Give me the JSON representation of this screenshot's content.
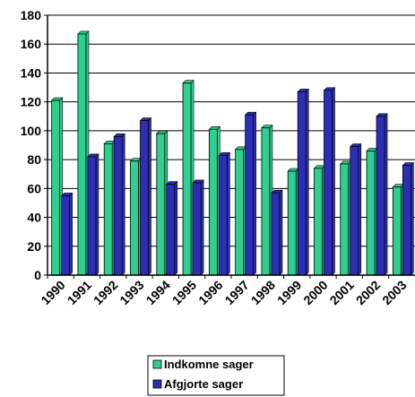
{
  "chart_data": {
    "type": "bar",
    "categories": [
      "1990",
      "1991",
      "1992",
      "1993",
      "1994",
      "1995",
      "1996",
      "1997",
      "1998",
      "1999",
      "2000",
      "2001",
      "2002",
      "2003"
    ],
    "series": [
      {
        "name": "Indkomne sager",
        "color": "#2ecf8f",
        "values": [
          121,
          167,
          91,
          79,
          98,
          133,
          101,
          87,
          102,
          72,
          74,
          77,
          86,
          61
        ]
      },
      {
        "name": "Afgjorte sager",
        "color": "#2e2eb5",
        "values": [
          55,
          82,
          96,
          107,
          63,
          64,
          83,
          111,
          57,
          127,
          128,
          89,
          110,
          76
        ]
      }
    ],
    "yticks": [
      "0",
      "20",
      "40",
      "60",
      "80",
      "100",
      "120",
      "140",
      "160",
      "180"
    ],
    "ylim": [
      0,
      180
    ],
    "grid": true,
    "legend_position": "bottom-center"
  }
}
